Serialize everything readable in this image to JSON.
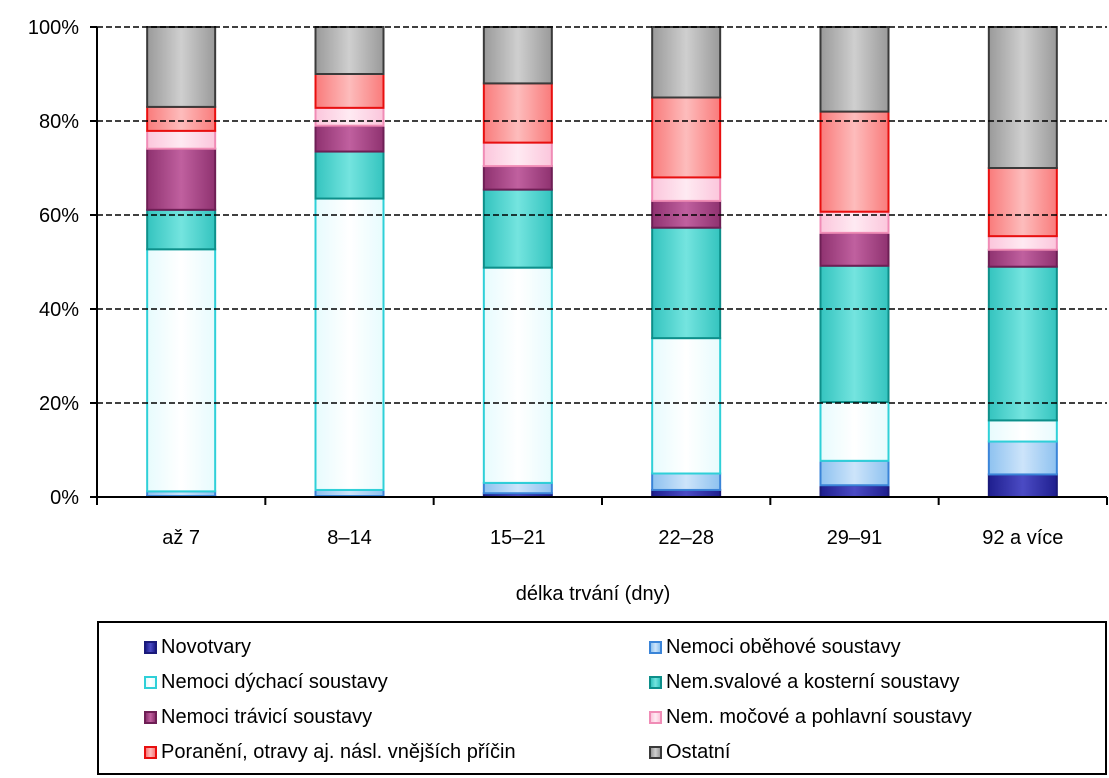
{
  "chart_data": {
    "type": "bar",
    "stacked": true,
    "normalized": true,
    "xlabel": "délka trvání (dny)",
    "ylabel": "",
    "ylim": [
      0,
      100
    ],
    "yticks": [
      "0%",
      "20%",
      "40%",
      "60%",
      "80%",
      "100%"
    ],
    "grid": "horizontal-dashed",
    "legend_position": "bottom",
    "categories": [
      "až 7",
      "8–14",
      "15–21",
      "22–28",
      "29–91",
      "92 a více"
    ],
    "series": [
      {
        "name": "Novotvary",
        "values": [
          0.2,
          0.2,
          0.8,
          1.5,
          2.5,
          4.8
        ],
        "fill": "#1f1f8f",
        "light": "#4b4bc4",
        "stroke": "#1a1a7a"
      },
      {
        "name": "Nemoci oběhové soustavy",
        "values": [
          1.0,
          1.3,
          2.2,
          3.5,
          5.2,
          7.0
        ],
        "fill": "#8ec2f0",
        "light": "#cde4fa",
        "stroke": "#3a84d8"
      },
      {
        "name": "Nemoci dýchací soustavy",
        "values": [
          51.5,
          62.0,
          45.8,
          28.8,
          12.5,
          4.5
        ],
        "fill": "#e7fbfd",
        "light": "#ffffff",
        "stroke": "#2fd0d8"
      },
      {
        "name": "Nem.svalové a kosterní soustavy",
        "values": [
          8.4,
          10.0,
          16.6,
          23.5,
          29.0,
          32.7
        ],
        "fill": "#34c4bf",
        "light": "#74e4df",
        "stroke": "#0d8f8a"
      },
      {
        "name": "Nemoci trávicí soustavy",
        "values": [
          13.0,
          5.5,
          5.0,
          5.7,
          7.0,
          3.6
        ],
        "fill": "#8f3270",
        "light": "#c0609f",
        "stroke": "#6e1f55"
      },
      {
        "name": "Nem. močové a pohlavní soustavy",
        "values": [
          3.8,
          3.8,
          5.0,
          5.0,
          4.5,
          2.9
        ],
        "fill": "#fcc6dc",
        "light": "#feeaf2",
        "stroke": "#f08cb6"
      },
      {
        "name": "Poranění, otravy aj. násl. vnějších příčin",
        "values": [
          5.1,
          7.2,
          12.6,
          17.0,
          21.3,
          14.5
        ],
        "fill": "#f97b7b",
        "light": "#fdbcbc",
        "stroke": "#e80f0f"
      },
      {
        "name": "Ostatní",
        "values": [
          17.0,
          10.0,
          12.0,
          15.0,
          18.0,
          30.0
        ],
        "fill": "#9a9a9a",
        "light": "#cfcfcf",
        "stroke": "#3a3a3a"
      }
    ]
  }
}
